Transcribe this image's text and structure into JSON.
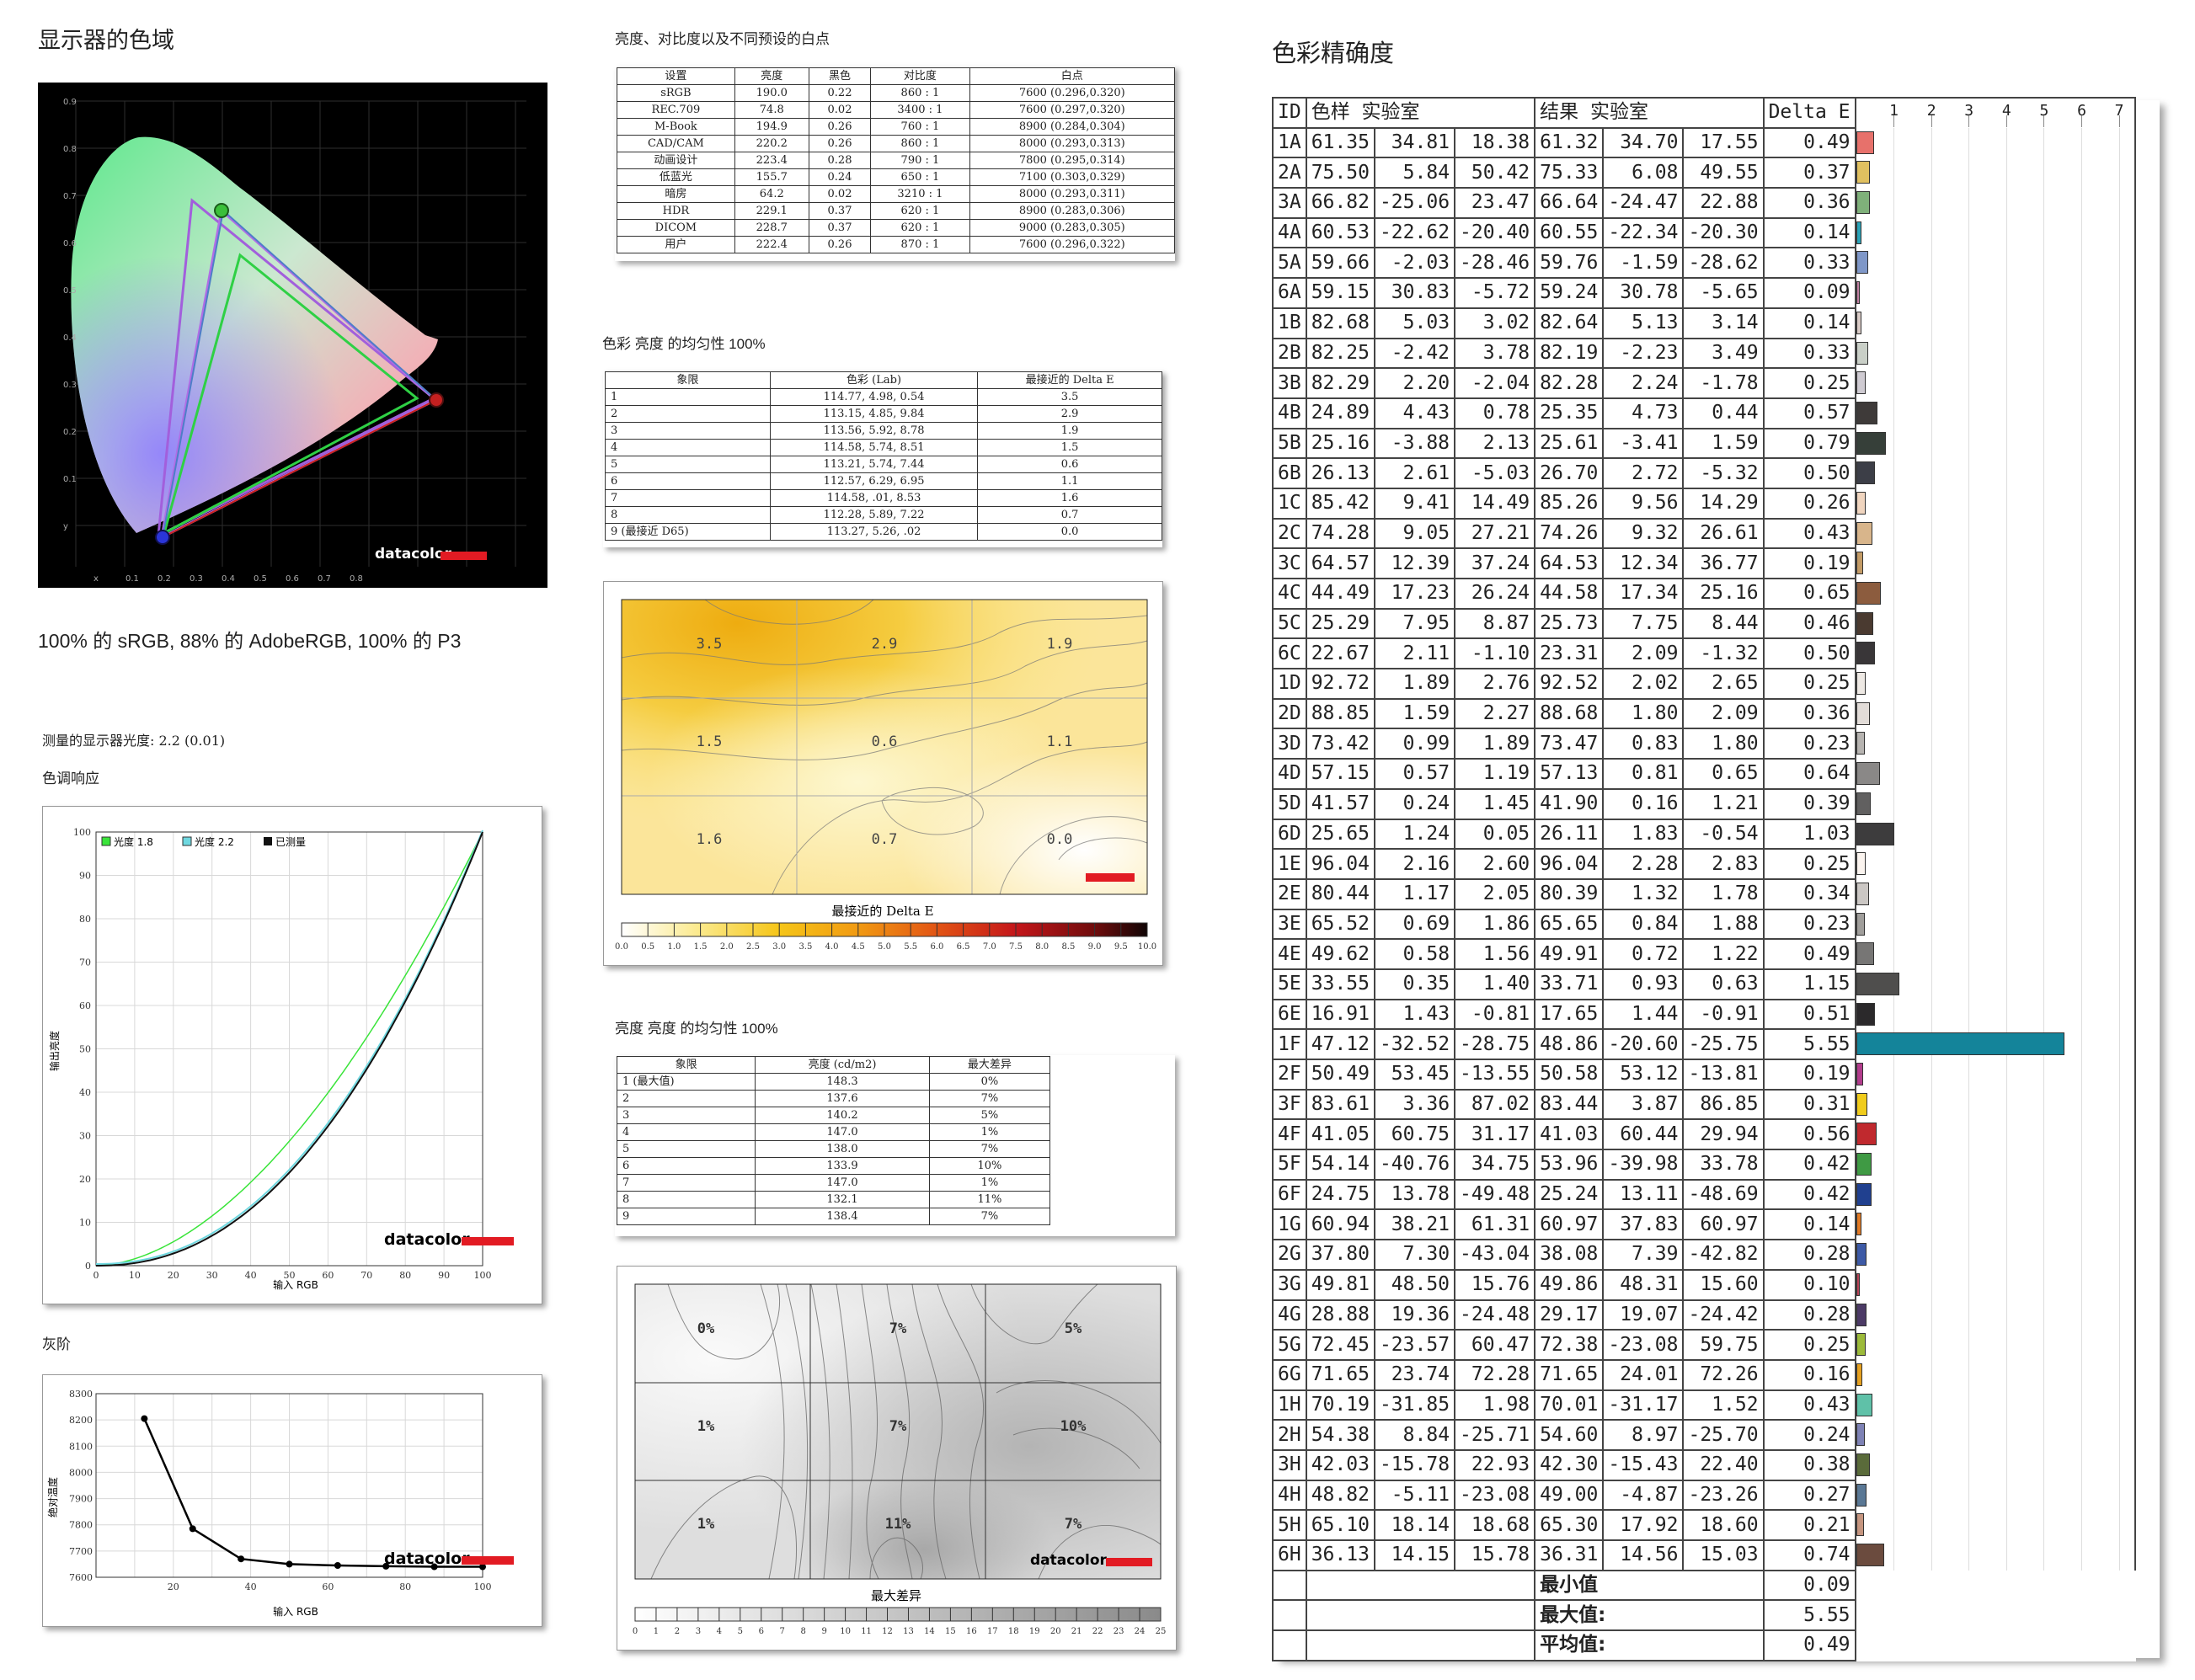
{
  "gamut": {
    "title": "显示器的色域",
    "caption": "100% 的 sRGB, 88% 的 AdobeRGB, 100% 的 P3",
    "y_ticks": [
      "0.9",
      "0.8",
      "0.7",
      "0.6",
      "0.5",
      "0.4",
      "0.3",
      "0.2",
      "0.1",
      "y"
    ],
    "x_ticks": [
      "x",
      "0.1",
      "0.2",
      "0.3",
      "0.4",
      "0.5",
      "0.6",
      "0.7",
      "0.8"
    ],
    "logo": "datacolor"
  },
  "gamma": {
    "measured_label": "测量的显示器光度: 2.2 (0.01)",
    "title": "色调响应",
    "legend": [
      "光度 1.8",
      "光度 2.2",
      "已测量"
    ],
    "xlabel": "输入 RGB",
    "ylabel": "输出亮度",
    "ticks": [
      "0",
      "10",
      "20",
      "30",
      "40",
      "50",
      "60",
      "70",
      "80",
      "90",
      "100"
    ],
    "logo": "datacolor"
  },
  "grayscale": {
    "title": "灰阶",
    "xlabel": "输入 RGB",
    "ylabel": "绝对温度",
    "y_ticks": [
      "8300",
      "8200",
      "8100",
      "8000",
      "7900",
      "7800",
      "7700",
      "7600"
    ],
    "x_ticks": [
      "20",
      "40",
      "60",
      "80",
      "100"
    ],
    "logo": "datacolor"
  },
  "presets": {
    "title": "亮度、对比度以及不同预设的白点",
    "headers": [
      "设置",
      "亮度",
      "黑色",
      "对比度",
      "白点"
    ],
    "rows": [
      [
        "sRGB",
        "190.0",
        "0.22",
        "860 : 1",
        "7600 (0.296,0.320)"
      ],
      [
        "REC.709",
        "74.8",
        "0.02",
        "3400 : 1",
        "7600 (0.297,0.320)"
      ],
      [
        "M-Book",
        "194.9",
        "0.26",
        "760 : 1",
        "8900 (0.284,0.304)"
      ],
      [
        "CAD/CAM",
        "220.2",
        "0.26",
        "860 : 1",
        "8000 (0.293,0.313)"
      ],
      [
        "动画设计",
        "223.4",
        "0.28",
        "790 : 1",
        "7800 (0.295,0.314)"
      ],
      [
        "低蓝光",
        "155.7",
        "0.24",
        "650 : 1",
        "7100 (0.303,0.329)"
      ],
      [
        "暗房",
        "64.2",
        "0.02",
        "3210 : 1",
        "8000 (0.293,0.311)"
      ],
      [
        "HDR",
        "229.1",
        "0.37",
        "620 : 1",
        "8900 (0.283,0.306)"
      ],
      [
        "DICOM",
        "228.7",
        "0.37",
        "620 : 1",
        "9000 (0.283,0.305)"
      ],
      [
        "用户",
        "222.4",
        "0.26",
        "870 : 1",
        "7600 (0.296,0.322)"
      ]
    ]
  },
  "color_uniformity": {
    "title": "色彩 亮度 的均匀性 100%",
    "headers": [
      "象限",
      "色彩 (Lab)",
      "最接近的 Delta E"
    ],
    "rows": [
      [
        "1",
        "114.77,   4.98,   0.54",
        "3.5"
      ],
      [
        "2",
        "113.15,   4.85,   9.84",
        "2.9"
      ],
      [
        "3",
        "113.56,   5.92,   8.78",
        "1.9"
      ],
      [
        "4",
        "114.58,   5.74,   8.51",
        "1.5"
      ],
      [
        "5",
        "113.21,   5.74,   7.44",
        "0.6"
      ],
      [
        "6",
        "112.57,   6.29,   6.95",
        "1.1"
      ],
      [
        "7",
        "114.58,    .01,   8.53",
        "1.6"
      ],
      [
        "8",
        "112.28,   5.89,   7.22",
        "0.7"
      ],
      [
        "9 (最接近 D65)",
        "113.27,   5.26,    .02",
        "0.0"
      ]
    ],
    "map_values": [
      "3.5",
      "2.9",
      "1.9",
      "1.5",
      "0.6",
      "1.1",
      "1.6",
      "0.7",
      "0.0"
    ],
    "scale_title": "最接近的 Delta E",
    "scale_ticks": [
      "0.0",
      "0.5",
      "1.0",
      "1.5",
      "2.0",
      "2.5",
      "3.0",
      "3.5",
      "4.0",
      "4.5",
      "5.0",
      "5.5",
      "6.0",
      "6.5",
      "7.0",
      "7.5",
      "8.0",
      "8.5",
      "9.0",
      "9.5",
      "10.0"
    ]
  },
  "lum_uniformity": {
    "title": "亮度 亮度 的均匀性 100%",
    "headers": [
      "象限",
      "亮度 (cd/m2)",
      "最大差异"
    ],
    "rows": [
      [
        "1 (最大值)",
        "148.3",
        "0%"
      ],
      [
        "2",
        "137.6",
        "7%"
      ],
      [
        "3",
        "140.2",
        "5%"
      ],
      [
        "4",
        "147.0",
        "1%"
      ],
      [
        "5",
        "138.0",
        "7%"
      ],
      [
        "6",
        "133.9",
        "10%"
      ],
      [
        "7",
        "147.0",
        "1%"
      ],
      [
        "8",
        "132.1",
        "11%"
      ],
      [
        "9",
        "138.4",
        "7%"
      ]
    ],
    "map_values": [
      "0%",
      "7%",
      "5%",
      "1%",
      "7%",
      "10%",
      "1%",
      "11%",
      "7%"
    ],
    "scale_title": "最大差异",
    "scale_ticks": [
      "0",
      "1",
      "2",
      "3",
      "4",
      "5",
      "6",
      "7",
      "8",
      "9",
      "10",
      "11",
      "12",
      "13",
      "14",
      "15",
      "16",
      "17",
      "18",
      "19",
      "20",
      "21",
      "22",
      "23",
      "24",
      "25"
    ],
    "logo": "datacolor"
  },
  "accuracy": {
    "title": "色彩精确度",
    "headers": {
      "id": "ID",
      "swatch": "色样 实验室",
      "result": "结果 实验室",
      "de": "Delta E"
    },
    "axis_ticks": [
      "1",
      "2",
      "3",
      "4",
      "5",
      "6",
      "7"
    ],
    "chart_data": {
      "type": "bar",
      "orientation": "horizontal",
      "xlabel": "Delta E",
      "xlim": [
        0,
        7.4
      ],
      "categories": [
        "1A",
        "2A",
        "3A",
        "4A",
        "5A",
        "6A",
        "1B",
        "2B",
        "3B",
        "4B",
        "5B",
        "6B",
        "1C",
        "2C",
        "3C",
        "4C",
        "5C",
        "6C",
        "1D",
        "2D",
        "3D",
        "4D",
        "5D",
        "6D",
        "1E",
        "2E",
        "3E",
        "4E",
        "5E",
        "6E",
        "1F",
        "2F",
        "3F",
        "4F",
        "5F",
        "6F",
        "1G",
        "2G",
        "3G",
        "4G",
        "5G",
        "6G",
        "1H",
        "2H",
        "3H",
        "4H",
        "5H",
        "6H"
      ],
      "values": [
        0.49,
        0.37,
        0.36,
        0.14,
        0.33,
        0.09,
        0.14,
        0.33,
        0.25,
        0.57,
        0.79,
        0.5,
        0.26,
        0.43,
        0.19,
        0.65,
        0.46,
        0.5,
        0.25,
        0.36,
        0.23,
        0.64,
        0.39,
        1.03,
        0.25,
        0.34,
        0.23,
        0.49,
        1.15,
        0.51,
        5.55,
        0.19,
        0.31,
        0.56,
        0.42,
        0.42,
        0.14,
        0.28,
        0.1,
        0.28,
        0.25,
        0.16,
        0.43,
        0.24,
        0.38,
        0.27,
        0.21,
        0.74
      ]
    },
    "rows": [
      [
        "1A",
        "61.35",
        "34.81",
        "18.38",
        "61.32",
        "34.70",
        "17.55",
        "0.49",
        "#e7716b"
      ],
      [
        "2A",
        "75.50",
        "5.84",
        "50.42",
        "75.33",
        "6.08",
        "49.55",
        "0.37",
        "#e0c060"
      ],
      [
        "3A",
        "66.82",
        "-25.06",
        "23.47",
        "66.64",
        "-24.47",
        "22.88",
        "0.36",
        "#7fb07a"
      ],
      [
        "4A",
        "60.53",
        "-22.62",
        "-20.40",
        "60.55",
        "-22.34",
        "-20.30",
        "0.14",
        "#2aa3b8"
      ],
      [
        "5A",
        "59.66",
        "-2.03",
        "-28.46",
        "59.76",
        "-1.59",
        "-28.62",
        "0.33",
        "#7f97c8"
      ],
      [
        "6A",
        "59.15",
        "30.83",
        "-5.72",
        "59.24",
        "30.78",
        "-5.65",
        "0.09",
        "#c07fa2"
      ],
      [
        "1B",
        "82.68",
        "5.03",
        "3.02",
        "82.64",
        "5.13",
        "3.14",
        "0.14",
        "#d9cbc6"
      ],
      [
        "2B",
        "82.25",
        "-2.42",
        "3.78",
        "82.19",
        "-2.23",
        "3.49",
        "0.33",
        "#c9cfc7"
      ],
      [
        "3B",
        "82.29",
        "2.20",
        "-2.04",
        "82.28",
        "2.24",
        "-1.78",
        "0.25",
        "#cfcbd2"
      ],
      [
        "4B",
        "24.89",
        "4.43",
        "0.78",
        "25.35",
        "4.73",
        "0.44",
        "0.57",
        "#3e3a39"
      ],
      [
        "5B",
        "25.16",
        "-3.88",
        "2.13",
        "25.61",
        "-3.41",
        "1.59",
        "0.79",
        "#363f39"
      ],
      [
        "6B",
        "26.13",
        "2.61",
        "-5.03",
        "26.70",
        "2.72",
        "-5.32",
        "0.50",
        "#3c3e47"
      ],
      [
        "1C",
        "85.42",
        "9.41",
        "14.49",
        "85.26",
        "9.56",
        "14.29",
        "0.26",
        "#f0d5bf"
      ],
      [
        "2C",
        "74.28",
        "9.05",
        "27.21",
        "74.26",
        "9.32",
        "26.61",
        "0.43",
        "#d8b58b"
      ],
      [
        "3C",
        "64.57",
        "12.39",
        "37.24",
        "64.53",
        "12.34",
        "36.77",
        "0.19",
        "#c39b66"
      ],
      [
        "4C",
        "44.49",
        "17.23",
        "26.24",
        "44.58",
        "17.34",
        "25.16",
        "0.65",
        "#8c5c3e"
      ],
      [
        "5C",
        "25.29",
        "7.95",
        "8.87",
        "25.73",
        "7.75",
        "8.44",
        "0.46",
        "#4a3a30"
      ],
      [
        "6C",
        "22.67",
        "2.11",
        "-1.10",
        "23.31",
        "2.09",
        "-1.32",
        "0.50",
        "#393638"
      ],
      [
        "1D",
        "92.72",
        "1.89",
        "2.76",
        "92.52",
        "2.02",
        "2.65",
        "0.25",
        "#eee9e4"
      ],
      [
        "2D",
        "88.85",
        "1.59",
        "2.27",
        "88.68",
        "1.80",
        "2.09",
        "0.36",
        "#e2dcd8"
      ],
      [
        "3D",
        "73.42",
        "0.99",
        "1.89",
        "73.47",
        "0.83",
        "1.80",
        "0.23",
        "#b7b4b1"
      ],
      [
        "4D",
        "57.15",
        "0.57",
        "1.19",
        "57.13",
        "0.81",
        "0.65",
        "0.64",
        "#8a8887"
      ],
      [
        "5D",
        "41.57",
        "0.24",
        "1.45",
        "41.90",
        "0.16",
        "1.21",
        "0.39",
        "#616060"
      ],
      [
        "6D",
        "25.65",
        "1.24",
        "0.05",
        "26.11",
        "1.83",
        "-0.54",
        "1.03",
        "#3d3c3d"
      ],
      [
        "1E",
        "96.04",
        "2.16",
        "2.60",
        "96.04",
        "2.28",
        "2.83",
        "0.25",
        "#fbf4ef"
      ],
      [
        "2E",
        "80.44",
        "1.17",
        "2.05",
        "80.39",
        "1.32",
        "1.78",
        "0.34",
        "#cbc7c4"
      ],
      [
        "3E",
        "65.52",
        "0.69",
        "1.86",
        "65.65",
        "0.84",
        "1.88",
        "0.23",
        "#a09e9b"
      ],
      [
        "4E",
        "49.62",
        "0.58",
        "1.56",
        "49.91",
        "0.72",
        "1.22",
        "0.49",
        "#777675"
      ],
      [
        "5E",
        "33.55",
        "0.35",
        "1.40",
        "33.71",
        "0.93",
        "0.63",
        "1.15",
        "#4f4e4d"
      ],
      [
        "6E",
        "16.91",
        "1.43",
        "-0.81",
        "17.65",
        "1.44",
        "-0.91",
        "0.51",
        "#2b292b"
      ],
      [
        "1F",
        "47.12",
        "-32.52",
        "-28.75",
        "48.86",
        "-20.60",
        "-25.75",
        "5.55",
        "#14849a"
      ],
      [
        "2F",
        "50.49",
        "53.45",
        "-13.55",
        "50.58",
        "53.12",
        "-13.81",
        "0.19",
        "#b23c8c"
      ],
      [
        "3F",
        "83.61",
        "3.36",
        "87.02",
        "83.44",
        "3.87",
        "86.85",
        "0.31",
        "#f0cc1c"
      ],
      [
        "4F",
        "41.05",
        "60.75",
        "31.17",
        "41.03",
        "60.44",
        "29.94",
        "0.56",
        "#c0292e"
      ],
      [
        "5F",
        "54.14",
        "-40.76",
        "34.75",
        "53.96",
        "-39.98",
        "33.78",
        "0.42",
        "#3f9a44"
      ],
      [
        "6F",
        "24.75",
        "13.78",
        "-49.48",
        "25.24",
        "13.11",
        "-48.69",
        "0.42",
        "#20408f"
      ],
      [
        "1G",
        "60.94",
        "38.21",
        "61.31",
        "60.97",
        "37.83",
        "60.97",
        "0.14",
        "#e27a24"
      ],
      [
        "2G",
        "37.80",
        "7.30",
        "-43.04",
        "38.08",
        "7.39",
        "-42.82",
        "0.28",
        "#3d5aa6"
      ],
      [
        "3G",
        "49.81",
        "48.50",
        "15.76",
        "49.86",
        "48.31",
        "15.60",
        "0.10",
        "#b94257"
      ],
      [
        "4G",
        "28.88",
        "19.36",
        "-24.48",
        "29.17",
        "19.07",
        "-24.42",
        "0.28",
        "#4c3a66"
      ],
      [
        "5G",
        "72.45",
        "-23.57",
        "60.47",
        "72.38",
        "-23.08",
        "59.75",
        "0.25",
        "#9cba3a"
      ],
      [
        "6G",
        "71.65",
        "23.74",
        "72.28",
        "71.65",
        "24.01",
        "72.26",
        "0.16",
        "#e5a020"
      ],
      [
        "1H",
        "70.19",
        "-31.85",
        "1.98",
        "70.01",
        "-31.17",
        "1.52",
        "0.43",
        "#5fc1a8"
      ],
      [
        "2H",
        "54.38",
        "8.84",
        "-25.71",
        "54.60",
        "8.97",
        "-25.70",
        "0.24",
        "#7e82b5"
      ],
      [
        "3H",
        "42.03",
        "-15.78",
        "22.93",
        "42.30",
        "-15.43",
        "22.40",
        "0.38",
        "#5a6b3a"
      ],
      [
        "4H",
        "48.82",
        "-5.11",
        "-23.08",
        "49.00",
        "-4.87",
        "-23.26",
        "0.27",
        "#5a7895"
      ],
      [
        "5H",
        "65.10",
        "18.14",
        "18.68",
        "65.30",
        "17.92",
        "18.60",
        "0.21",
        "#c5957f"
      ],
      [
        "6H",
        "36.13",
        "14.15",
        "15.78",
        "36.31",
        "14.56",
        "15.03",
        "0.74",
        "#6b4b3e"
      ]
    ],
    "summary": [
      {
        "label": "最小值",
        "value": "0.09"
      },
      {
        "label": "最大值:",
        "value": "5.55"
      },
      {
        "label": "平均值:",
        "value": "0.49"
      }
    ]
  }
}
